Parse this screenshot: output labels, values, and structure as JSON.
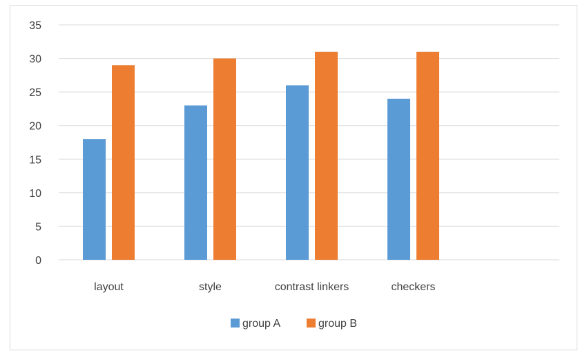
{
  "chart_data": {
    "type": "bar",
    "categories": [
      "layout",
      "style",
      "contrast linkers",
      "checkers"
    ],
    "series": [
      {
        "name": "group A",
        "values": [
          18,
          23,
          26,
          24
        ],
        "color": "#5b9bd5"
      },
      {
        "name": "group B",
        "values": [
          29,
          30,
          31,
          31
        ],
        "color": "#ed7d31"
      }
    ],
    "ylim": [
      0,
      35
    ],
    "yticks": [
      0,
      5,
      10,
      15,
      20,
      25,
      30,
      35
    ],
    "title": "",
    "xlabel": "",
    "ylabel": "",
    "grid": true,
    "legend_position": "bottom",
    "gridline_color": "#d9d9d9"
  }
}
